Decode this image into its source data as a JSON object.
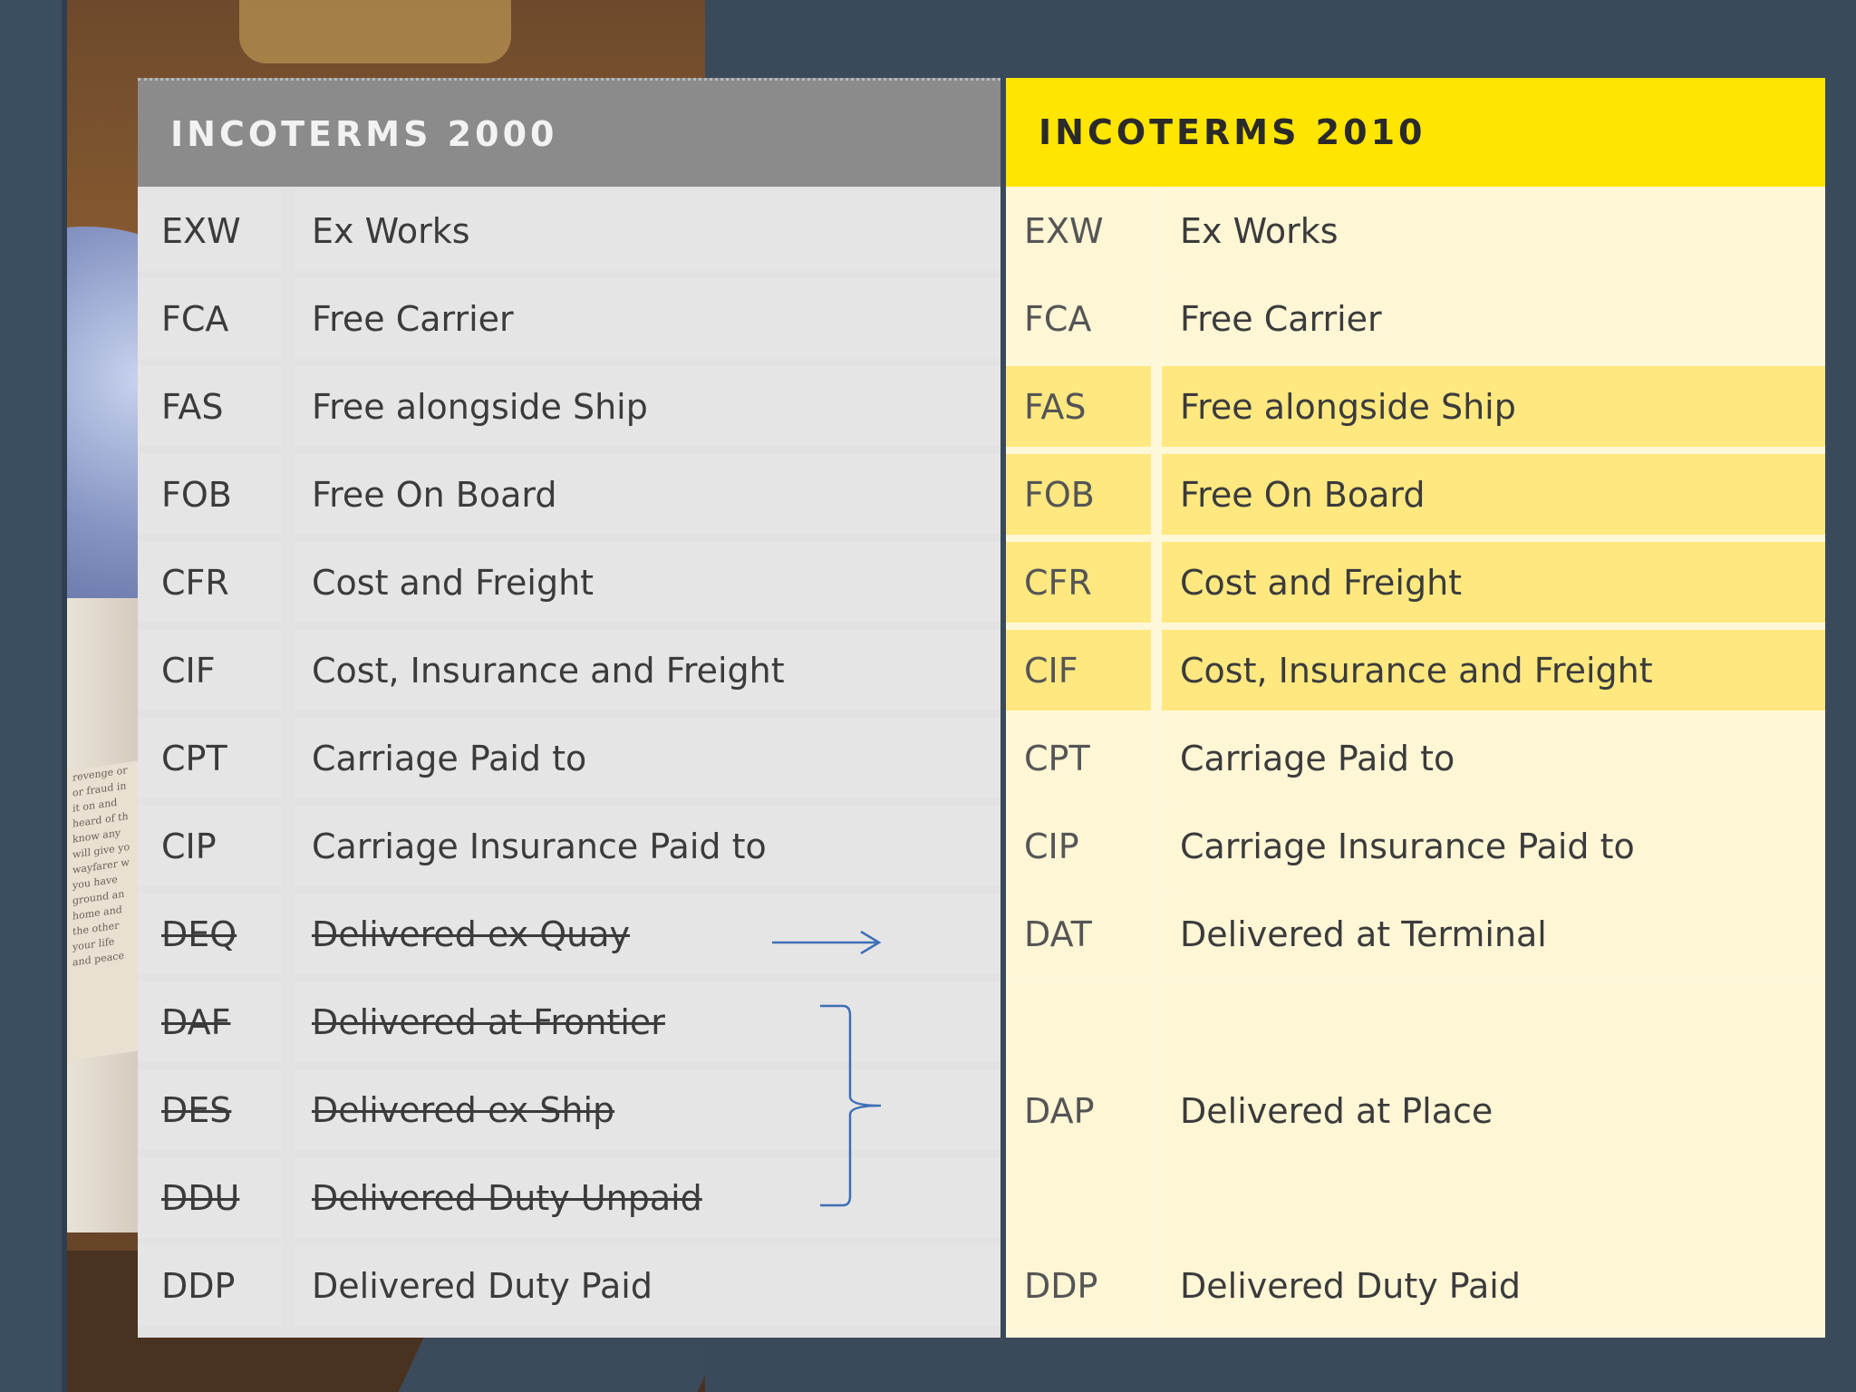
{
  "header": {
    "old_title": "INCOTERMS 2000",
    "new_title": "INCOTERMS 2010"
  },
  "rows": [
    {
      "old_code": "EXW",
      "old_name": "Ex Works",
      "new_code": "EXW",
      "new_name": "Ex Works",
      "highlight": false,
      "struck": false
    },
    {
      "old_code": "FCA",
      "old_name": "Free Carrier",
      "new_code": "FCA",
      "new_name": "Free Carrier",
      "highlight": false,
      "struck": false
    },
    {
      "old_code": "FAS",
      "old_name": "Free alongside Ship",
      "new_code": "FAS",
      "new_name": "Free alongside Ship",
      "highlight": true,
      "struck": false
    },
    {
      "old_code": "FOB",
      "old_name": "Free On Board",
      "new_code": "FOB",
      "new_name": "Free On Board",
      "highlight": true,
      "struck": false
    },
    {
      "old_code": "CFR",
      "old_name": "Cost and Freight",
      "new_code": "CFR",
      "new_name": "Cost and Freight",
      "highlight": true,
      "struck": false
    },
    {
      "old_code": "CIF",
      "old_name": "Cost, Insurance and Freight",
      "new_code": "CIF",
      "new_name": "Cost, Insurance and Freight",
      "highlight": true,
      "struck": false
    },
    {
      "old_code": "CPT",
      "old_name": "Carriage Paid to",
      "new_code": "CPT",
      "new_name": "Carriage Paid to",
      "highlight": false,
      "struck": false
    },
    {
      "old_code": "CIP",
      "old_name": "Carriage Insurance Paid to",
      "new_code": "CIP",
      "new_name": "Carriage Insurance Paid to",
      "highlight": false,
      "struck": false
    },
    {
      "old_code": "DEQ",
      "old_name": "Delivered ex Quay",
      "new_code": "DAT",
      "new_name": "Delivered at Terminal",
      "highlight": false,
      "struck": true
    },
    {
      "old_code": "DAF",
      "old_name": "Delivered at Frontier",
      "struck": true
    },
    {
      "old_code": "DES",
      "old_name": "Delivered ex Ship",
      "struck": true
    },
    {
      "old_code": "DDU",
      "old_name": "Delivered Duty Unpaid",
      "struck": true
    },
    {
      "old_code": "DDP",
      "old_name": "Delivered Duty Paid",
      "new_code": "DDP",
      "new_name": "Delivered Duty Paid",
      "highlight": false,
      "struck": false
    }
  ],
  "merged": {
    "new_code": "DAP",
    "new_name": "Delivered at Place"
  },
  "background_paper_lines": [
    "revenge or",
    "or fraud in",
    "it on and",
    "heard of th",
    "know any",
    "will give yo",
    "wayfarer w",
    "you have",
    "ground an",
    "home and",
    "the other",
    "your life",
    "and peace"
  ],
  "colors": {
    "header_old": "#8b8b8b",
    "header_new": "#ffe500",
    "highlight": "#ffe880",
    "annotation": "#3d6fb6"
  }
}
